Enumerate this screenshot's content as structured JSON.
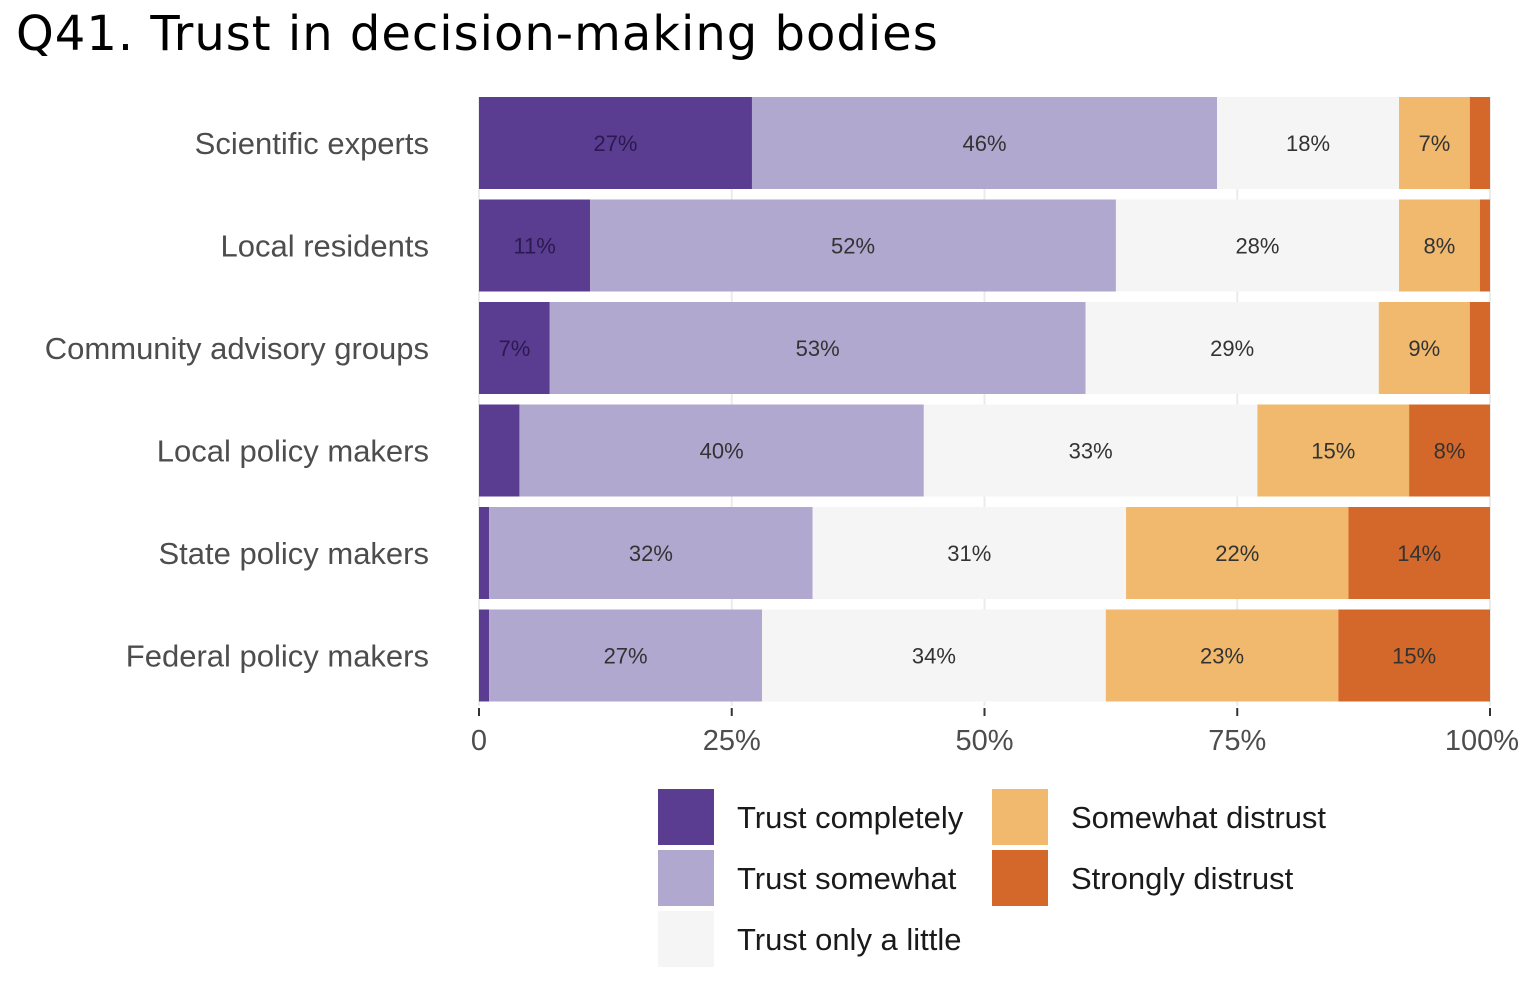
{
  "title": "Q41. Trust in decision-making bodies",
  "chart_data": {
    "type": "bar",
    "orientation": "horizontal",
    "stacked": true,
    "categories": [
      "Scientific experts",
      "Local residents",
      "Community advisory groups",
      "Local policy makers",
      "State policy makers",
      "Federal policy makers"
    ],
    "series": [
      {
        "name": "Trust completely",
        "color": "#5a3d91",
        "label_color": "#2a1a4f",
        "values": [
          27,
          11,
          7,
          4,
          1,
          1
        ]
      },
      {
        "name": "Trust somewhat",
        "color": "#b0a8ce",
        "label_color": "#333333",
        "values": [
          46,
          52,
          53,
          40,
          32,
          27
        ]
      },
      {
        "name": "Trust only a little",
        "color": "#f5f5f5",
        "label_color": "#333333",
        "values": [
          18,
          28,
          29,
          33,
          31,
          34
        ]
      },
      {
        "name": "Somewhat distrust",
        "color": "#f1b96e",
        "label_color": "#333333",
        "values": [
          7,
          8,
          9,
          15,
          22,
          23
        ]
      },
      {
        "name": "Strongly distrust",
        "color": "#d4682a",
        "label_color": "#333333",
        "values": [
          2,
          1,
          2,
          8,
          14,
          15
        ]
      }
    ],
    "data_labels": [
      [
        "27%",
        "46%",
        "18%",
        "7%",
        ""
      ],
      [
        "11%",
        "52%",
        "28%",
        "8%",
        ""
      ],
      [
        "7%",
        "53%",
        "29%",
        "9%",
        ""
      ],
      [
        "",
        "40%",
        "33%",
        "15%",
        "8%"
      ],
      [
        "",
        "32%",
        "31%",
        "22%",
        "14%"
      ],
      [
        "",
        "27%",
        "34%",
        "23%",
        "15%"
      ]
    ],
    "xlim": [
      0,
      100
    ],
    "x_ticks": [
      0,
      25,
      50,
      75,
      100
    ],
    "x_tick_labels": [
      "0",
      "25%",
      "50%",
      "75%",
      "100%"
    ],
    "xlabel": "",
    "ylabel": "",
    "grid": true,
    "legend_position": "bottom"
  }
}
